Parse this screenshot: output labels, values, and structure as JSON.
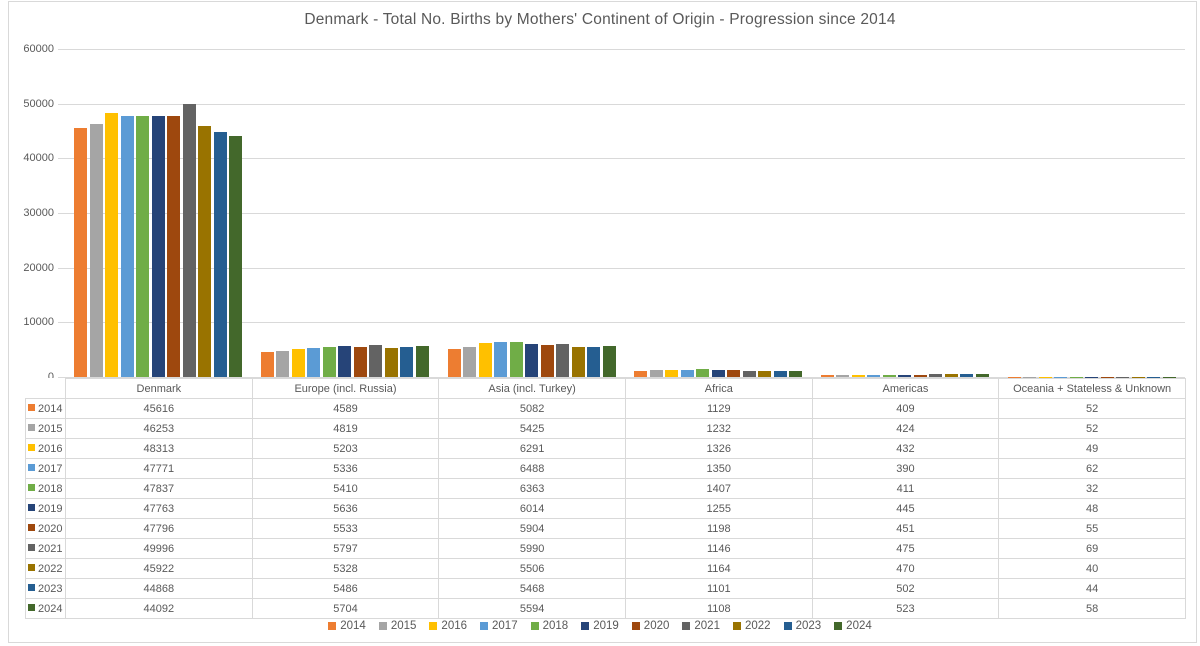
{
  "colors": {
    "border": "#d9d9d9",
    "text": "#595959",
    "background": "#ffffff"
  },
  "chart_data": {
    "type": "bar",
    "title": "Denmark - Total No. Births by Mothers' Continent of Origin - Progression since 2014",
    "categories": [
      "Denmark",
      "Europe (incl. Russia)",
      "Asia (incl. Turkey)",
      "Africa",
      "Americas",
      "Oceania + Stateless & Unknown"
    ],
    "series": [
      {
        "name": "2014",
        "color": "#ED7D31",
        "values": [
          45616,
          4589,
          5082,
          1129,
          409,
          52
        ]
      },
      {
        "name": "2015",
        "color": "#A5A5A5",
        "values": [
          46253,
          4819,
          5425,
          1232,
          424,
          52
        ]
      },
      {
        "name": "2016",
        "color": "#FFC000",
        "values": [
          48313,
          5203,
          6291,
          1326,
          432,
          49
        ]
      },
      {
        "name": "2017",
        "color": "#5B9BD5",
        "values": [
          47771,
          5336,
          6488,
          1350,
          390,
          62
        ]
      },
      {
        "name": "2018",
        "color": "#70AD47",
        "values": [
          47837,
          5410,
          6363,
          1407,
          411,
          32
        ]
      },
      {
        "name": "2019",
        "color": "#264478",
        "values": [
          47763,
          5636,
          6014,
          1255,
          445,
          48
        ]
      },
      {
        "name": "2020",
        "color": "#9E480E",
        "values": [
          47796,
          5533,
          5904,
          1198,
          451,
          55
        ]
      },
      {
        "name": "2021",
        "color": "#636363",
        "values": [
          49996,
          5797,
          5990,
          1146,
          475,
          69
        ]
      },
      {
        "name": "2022",
        "color": "#997300",
        "values": [
          45922,
          5328,
          5506,
          1164,
          470,
          40
        ]
      },
      {
        "name": "2023",
        "color": "#255E91",
        "values": [
          44868,
          5486,
          5468,
          1101,
          502,
          44
        ]
      },
      {
        "name": "2024",
        "color": "#43682B",
        "values": [
          44092,
          5704,
          5594,
          1108,
          523,
          58
        ]
      }
    ],
    "ylim": [
      0,
      60000
    ],
    "yticks": [
      0,
      10000,
      20000,
      30000,
      40000,
      50000,
      60000
    ],
    "grid": true,
    "legend_position": "bottom",
    "data_table_shown": true
  }
}
